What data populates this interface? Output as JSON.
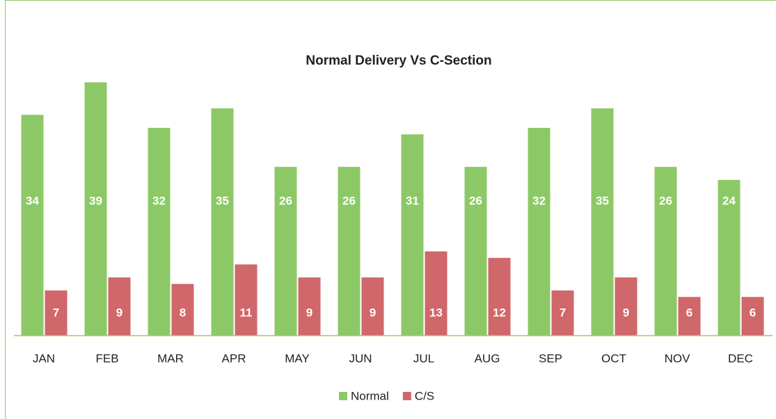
{
  "chart_data": {
    "type": "bar",
    "title": "Normal Delivery Vs C-Section",
    "categories": [
      "JAN",
      "FEB",
      "MAR",
      "APR",
      "MAY",
      "JUN",
      "JUL",
      "AUG",
      "SEP",
      "OCT",
      "NOV",
      "DEC"
    ],
    "series": [
      {
        "name": "Normal",
        "color": "#8cc966",
        "values": [
          34,
          39,
          32,
          35,
          26,
          26,
          31,
          26,
          32,
          35,
          26,
          24
        ]
      },
      {
        "name": "C/S",
        "color": "#d0676a",
        "values": [
          7,
          9,
          8,
          11,
          9,
          9,
          13,
          12,
          7,
          9,
          6,
          6
        ]
      }
    ],
    "legend": "bottom"
  }
}
